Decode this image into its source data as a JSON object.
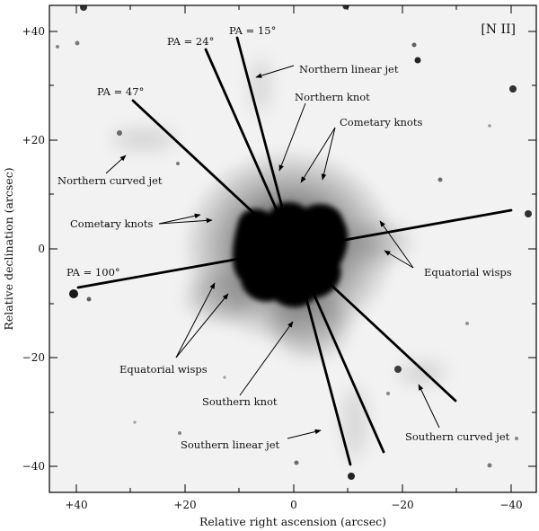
{
  "figure": {
    "filter_label": "[N II]",
    "x_axis": {
      "title": "Relative right ascension (arcsec)",
      "tick_labels": [
        "+40",
        "+20",
        "0",
        "−20",
        "−40"
      ],
      "range": [
        45,
        -45
      ]
    },
    "y_axis": {
      "title": "Relative declination (arcsec)",
      "tick_labels": [
        "+40",
        "+20",
        "0",
        "−20",
        "−40"
      ],
      "range": [
        -45,
        45
      ]
    },
    "position_angles": [
      {
        "label": "PA = 15°",
        "angle_deg": 15
      },
      {
        "label": "PA = 24°",
        "angle_deg": 24
      },
      {
        "label": "PA = 47°",
        "angle_deg": 47
      },
      {
        "label": "PA = 100°",
        "angle_deg": 100
      }
    ],
    "annotations": {
      "northern_linear_jet": "Northern linear jet",
      "northern_knot": "Northern knot",
      "cometary_knots_north": "Cometary knots",
      "northern_curved_jet": "Northern curved jet",
      "cometary_knots_east": "Cometary knots",
      "equatorial_wisps_west": "Equatorial wisps",
      "equatorial_wisps_south": "Equatorial wisps",
      "southern_knot": "Southern knot",
      "southern_linear_jet": "Southern linear jet",
      "southern_curved_jet": "Southern curved jet"
    }
  }
}
